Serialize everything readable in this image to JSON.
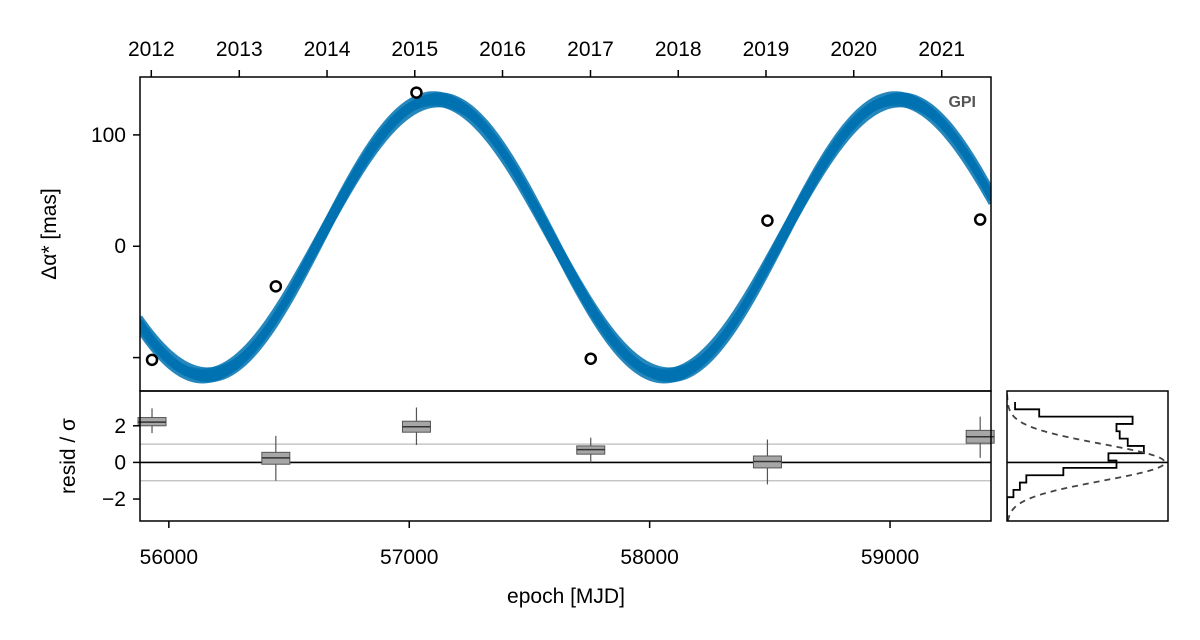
{
  "chart_data": [
    {
      "type": "line",
      "panel": "main",
      "instrument_label": "GPI",
      "ylabel": "Δα* [mas]",
      "xlim": [
        55880,
        59420
      ],
      "ylim": [
        -130,
        152
      ],
      "y_ticks": [
        {
          "value": 100,
          "label": "100"
        },
        {
          "value": 0,
          "label": "0"
        },
        {
          "value": -100,
          "label": ""
        }
      ],
      "top_axis": {
        "ticks": [
          {
            "label": "2012",
            "mjd": 55927
          },
          {
            "label": "2013",
            "mjd": 56293
          },
          {
            "label": "2014",
            "mjd": 56658
          },
          {
            "label": "2015",
            "mjd": 57023
          },
          {
            "label": "2016",
            "mjd": 57388
          },
          {
            "label": "2017",
            "mjd": 57754
          },
          {
            "label": "2018",
            "mjd": 58119
          },
          {
            "label": "2019",
            "mjd": 58484
          },
          {
            "label": "2020",
            "mjd": 58849
          },
          {
            "label": "2021",
            "mjd": 59215
          }
        ]
      },
      "model": {
        "color": "#0072b2",
        "mean": 8,
        "amplitude": 124,
        "period_days": 1920,
        "phase_mjd": 57112,
        "band_width": 5.5
      },
      "points": [
        {
          "x": 55930,
          "y": -102
        },
        {
          "x": 56445,
          "y": -36
        },
        {
          "x": 57030,
          "y": 138
        },
        {
          "x": 57755,
          "y": -101
        },
        {
          "x": 58490,
          "y": 23
        },
        {
          "x": 59375,
          "y": 24
        }
      ]
    },
    {
      "type": "box",
      "panel": "residuals",
      "ylabel": "resid / σ",
      "xlabel": "epoch [MJD]",
      "xlim": [
        55880,
        59420
      ],
      "ylim": [
        -3.2,
        3.9
      ],
      "x_ticks": [
        56000,
        57000,
        58000,
        59000
      ],
      "y_ticks": [
        {
          "value": 2,
          "label": "2"
        },
        {
          "value": 0,
          "label": "0"
        },
        {
          "value": -2,
          "label": "−2"
        }
      ],
      "reference_lines": [
        0,
        1,
        -1
      ],
      "boxes": [
        {
          "x": 55930,
          "min": 1.6,
          "q1": 2.0,
          "median": 2.2,
          "q3": 2.45,
          "max": 2.95
        },
        {
          "x": 56445,
          "min": -1.0,
          "q1": -0.1,
          "median": 0.25,
          "q3": 0.55,
          "max": 1.45
        },
        {
          "x": 57030,
          "min": 0.95,
          "q1": 1.65,
          "median": 1.95,
          "q3": 2.25,
          "max": 3.0
        },
        {
          "x": 57755,
          "min": 0.0,
          "q1": 0.45,
          "median": 0.7,
          "q3": 0.9,
          "max": 1.35
        },
        {
          "x": 58490,
          "min": -1.2,
          "q1": -0.3,
          "median": 0.05,
          "q3": 0.35,
          "max": 1.25
        },
        {
          "x": 59375,
          "min": 0.25,
          "q1": 1.05,
          "median": 1.4,
          "q3": 1.75,
          "max": 2.5
        }
      ]
    },
    {
      "type": "histogram",
      "panel": "residual-distribution",
      "orientation": "horizontal",
      "bins": [
        {
          "y0": 2.9,
          "y1": 3.3,
          "count": 0.05
        },
        {
          "y0": 2.5,
          "y1": 2.9,
          "count": 0.2
        },
        {
          "y0": 2.1,
          "y1": 2.5,
          "count": 0.78
        },
        {
          "y0": 1.7,
          "y1": 2.1,
          "count": 0.68
        },
        {
          "y0": 1.3,
          "y1": 1.7,
          "count": 0.7
        },
        {
          "y0": 0.9,
          "y1": 1.3,
          "count": 0.75
        },
        {
          "y0": 0.5,
          "y1": 0.9,
          "count": 0.85
        },
        {
          "y0": 0.1,
          "y1": 0.5,
          "count": 0.63
        },
        {
          "y0": -0.3,
          "y1": 0.1,
          "count": 0.68
        },
        {
          "y0": -0.7,
          "y1": -0.3,
          "count": 0.35
        },
        {
          "y0": -1.1,
          "y1": -0.7,
          "count": 0.12
        },
        {
          "y0": -1.5,
          "y1": -1.1,
          "count": 0.08
        },
        {
          "y0": -1.9,
          "y1": -1.5,
          "count": 0.04
        },
        {
          "y0": -3.2,
          "y1": -1.9,
          "count": 0.0
        }
      ],
      "reference_curve": {
        "type": "normal",
        "mu": 0,
        "sigma": 1,
        "scale": 0.98,
        "style": "dashed"
      }
    }
  ]
}
